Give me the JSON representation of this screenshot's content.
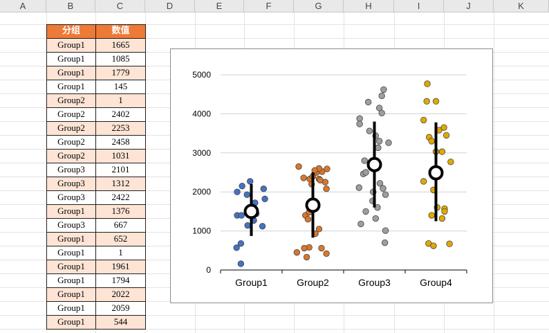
{
  "spreadsheet": {
    "columns": [
      "A",
      "B",
      "C",
      "D",
      "E",
      "F",
      "G",
      "H",
      "I",
      "J",
      "K"
    ],
    "table": {
      "headers": [
        "分组",
        "数值"
      ],
      "rows": [
        [
          "Group1",
          "1665"
        ],
        [
          "Group1",
          "1085"
        ],
        [
          "Group1",
          "1779"
        ],
        [
          "Group1",
          "145"
        ],
        [
          "Group2",
          "1"
        ],
        [
          "Group2",
          "2402"
        ],
        [
          "Group2",
          "2253"
        ],
        [
          "Group2",
          "2458"
        ],
        [
          "Group2",
          "1031"
        ],
        [
          "Group3",
          "2101"
        ],
        [
          "Group3",
          "1312"
        ],
        [
          "Group3",
          "2422"
        ],
        [
          "Group1",
          "1376"
        ],
        [
          "Group3",
          "667"
        ],
        [
          "Group1",
          "652"
        ],
        [
          "Group1",
          "1"
        ],
        [
          "Group1",
          "1961"
        ],
        [
          "Group1",
          "1794"
        ],
        [
          "Group1",
          "2022"
        ],
        [
          "Group1",
          "2059"
        ],
        [
          "Group1",
          "544"
        ]
      ]
    },
    "colors": {
      "header_fill": "#ee7a37",
      "row_alt_fill": "#fde4d5"
    }
  },
  "chart_data": {
    "type": "scatter",
    "title": "",
    "xlabel": "",
    "ylabel": "",
    "categories": [
      "Group1",
      "Group2",
      "Group3",
      "Group4"
    ],
    "ylim": [
      0,
      5000
    ],
    "yticks": [
      0,
      1000,
      2000,
      3000,
      4000,
      5000
    ],
    "grid": true,
    "series": [
      {
        "color": "#4472c4",
        "points": [
          [
            -0.23,
            2000
          ],
          [
            -0.15,
            2150
          ],
          [
            -0.02,
            2270
          ],
          [
            0.2,
            2080
          ],
          [
            0.22,
            1820
          ],
          [
            -0.07,
            1930
          ],
          [
            0.03,
            1600
          ],
          [
            0.06,
            1720
          ],
          [
            0.18,
            1120
          ],
          [
            -0.23,
            1400
          ],
          [
            -0.16,
            1400
          ],
          [
            0.04,
            1270
          ],
          [
            0.08,
            1440
          ],
          [
            -0.06,
            1140
          ],
          [
            -0.24,
            570
          ],
          [
            -0.17,
            680
          ],
          [
            -0.17,
            160
          ]
        ],
        "mean": 1500,
        "low": 870,
        "high": 2200
      },
      {
        "color": "#d9772b",
        "points": [
          [
            -0.23,
            2650
          ],
          [
            -0.05,
            2330
          ],
          [
            0.0,
            2400
          ],
          [
            0.06,
            2500
          ],
          [
            0.15,
            2520
          ],
          [
            0.23,
            2590
          ],
          [
            0.1,
            2600
          ],
          [
            -0.15,
            2360
          ],
          [
            0.03,
            2550
          ],
          [
            -0.02,
            2200
          ],
          [
            0.1,
            2330
          ],
          [
            0.2,
            2250
          ],
          [
            0.12,
            2300
          ],
          [
            0.22,
            2080
          ],
          [
            -0.12,
            1400
          ],
          [
            -0.06,
            1480
          ],
          [
            -0.08,
            1300
          ],
          [
            0.1,
            1050
          ],
          [
            0.04,
            930
          ],
          [
            -0.06,
            580
          ],
          [
            -0.14,
            560
          ],
          [
            -0.26,
            450
          ],
          [
            0.14,
            560
          ],
          [
            0.22,
            420
          ],
          [
            -0.1,
            330
          ]
        ],
        "mean": 1660,
        "low": 830,
        "high": 2500
      },
      {
        "color": "#9e9e9e",
        "points": [
          [
            0.15,
            4620
          ],
          [
            0.12,
            4460
          ],
          [
            -0.1,
            4300
          ],
          [
            0.08,
            4150
          ],
          [
            0.12,
            4020
          ],
          [
            -0.24,
            3880
          ],
          [
            -0.24,
            3740
          ],
          [
            -0.08,
            3560
          ],
          [
            0.02,
            3440
          ],
          [
            0.08,
            3300
          ],
          [
            0.23,
            3260
          ],
          [
            0.06,
            3130
          ],
          [
            -0.16,
            2800
          ],
          [
            0.06,
            2650
          ],
          [
            -0.18,
            2460
          ],
          [
            -0.14,
            2500
          ],
          [
            0.09,
            2220
          ],
          [
            -0.02,
            2000
          ],
          [
            0.14,
            2090
          ],
          [
            -0.25,
            2110
          ],
          [
            0.18,
            1930
          ],
          [
            -0.03,
            1770
          ],
          [
            0.05,
            1600
          ],
          [
            -0.14,
            1500
          ],
          [
            0.02,
            1320
          ],
          [
            -0.22,
            1180
          ],
          [
            0.18,
            1010
          ],
          [
            0.17,
            700
          ]
        ],
        "mean": 2700,
        "low": 1600,
        "high": 3800
      },
      {
        "color": "#e0a900",
        "points": [
          [
            -0.14,
            4770
          ],
          [
            -0.15,
            4320
          ],
          [
            0.0,
            4320
          ],
          [
            -0.2,
            3840
          ],
          [
            0.05,
            3580
          ],
          [
            0.13,
            3650
          ],
          [
            -0.11,
            3400
          ],
          [
            -0.07,
            3300
          ],
          [
            0.17,
            3450
          ],
          [
            0.0,
            3030
          ],
          [
            0.1,
            3030
          ],
          [
            0.24,
            2770
          ],
          [
            -0.2,
            2270
          ],
          [
            -0.04,
            2050
          ],
          [
            0.02,
            1600
          ],
          [
            0.14,
            1570
          ],
          [
            0.14,
            1500
          ],
          [
            -0.07,
            1400
          ],
          [
            0.1,
            1320
          ],
          [
            -0.12,
            680
          ],
          [
            -0.04,
            620
          ],
          [
            0.22,
            670
          ]
        ],
        "mean": 2490,
        "low": 1250,
        "high": 3780
      }
    ]
  }
}
